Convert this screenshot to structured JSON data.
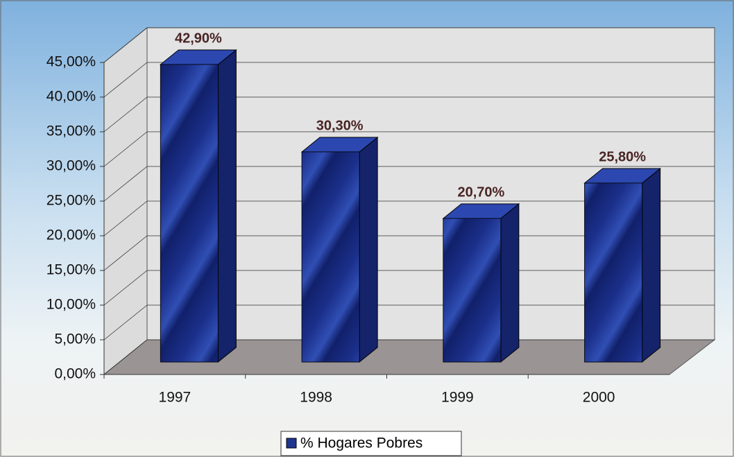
{
  "chart_data": {
    "type": "bar3d",
    "categories": [
      "1997",
      "1998",
      "1999",
      "2000"
    ],
    "series": [
      {
        "name": "% Hogares Pobres",
        "color": "#1f3590",
        "values": [
          42.9,
          30.3,
          20.7,
          25.8
        ],
        "value_labels": [
          "42,90%",
          "30,30%",
          "20,70%",
          "25,80%"
        ]
      }
    ],
    "ylim": [
      0,
      45
    ],
    "yticks": [
      {
        "value": 0,
        "label": "0,00%"
      },
      {
        "value": 5,
        "label": "5,00%"
      },
      {
        "value": 10,
        "label": "10,00%"
      },
      {
        "value": 15,
        "label": "15,00%"
      },
      {
        "value": 20,
        "label": "20,00%"
      },
      {
        "value": 25,
        "label": "25,00%"
      },
      {
        "value": 30,
        "label": "30,00%"
      },
      {
        "value": 35,
        "label": "35,00%"
      },
      {
        "value": 40,
        "label": "40,00%"
      },
      {
        "value": 45,
        "label": "45,00%"
      }
    ],
    "grid": true,
    "legend": "bottom"
  }
}
